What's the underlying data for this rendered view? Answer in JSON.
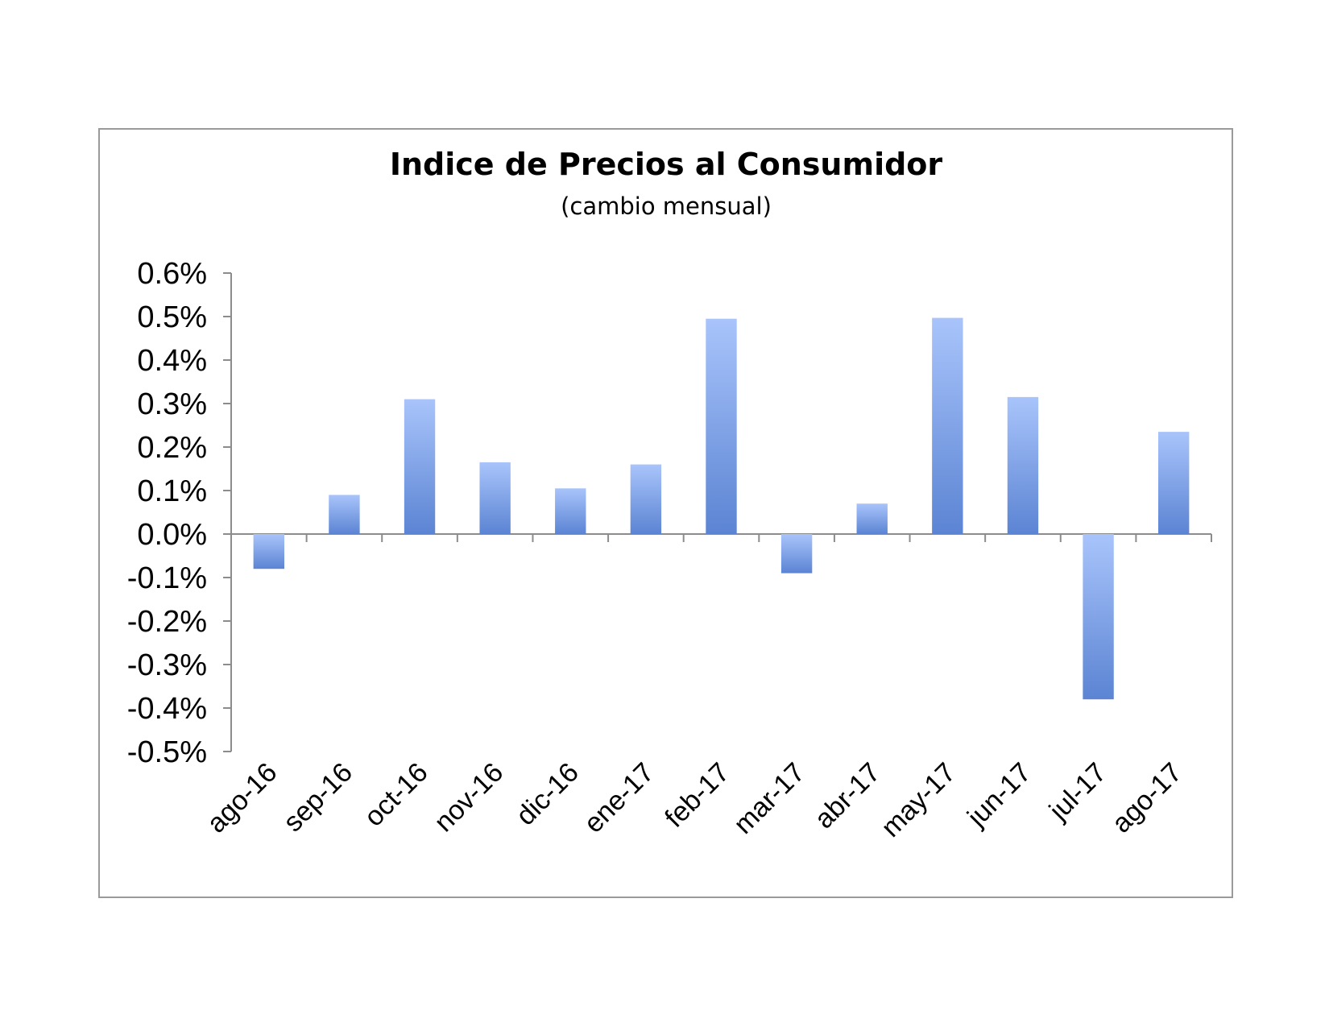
{
  "chart_data": {
    "type": "bar",
    "title": "Indice de Precios al Consumidor",
    "subtitle": "(cambio mensual)",
    "xlabel": "",
    "ylabel": "",
    "categories": [
      "ago-16",
      "sep-16",
      "oct-16",
      "nov-16",
      "dic-16",
      "ene-17",
      "feb-17",
      "mar-17",
      "abr-17",
      "may-17",
      "jun-17",
      "jul-17",
      "ago-17"
    ],
    "values": [
      -0.08,
      0.09,
      0.31,
      0.165,
      0.105,
      0.16,
      0.495,
      -0.09,
      0.07,
      0.497,
      0.315,
      -0.38,
      0.235
    ],
    "ylim": [
      -0.5,
      0.6
    ],
    "yticks": [
      0.6,
      0.5,
      0.4,
      0.3,
      0.2,
      0.1,
      0.0,
      -0.1,
      -0.2,
      -0.3,
      -0.4,
      -0.5
    ],
    "ytick_labels": [
      "0.6%",
      "0.5%",
      "0.4%",
      "0.3%",
      "0.2%",
      "0.1%",
      "0.0%",
      "-0.1%",
      "-0.2%",
      "-0.3%",
      "-0.4%",
      "-0.5%"
    ],
    "grid": false,
    "legend": "none",
    "colors": {
      "bar_light": "#a9c4fb",
      "bar_dark": "#5b84d3",
      "axis": "#8c8c8c",
      "frame": "#9a9a9a"
    }
  }
}
